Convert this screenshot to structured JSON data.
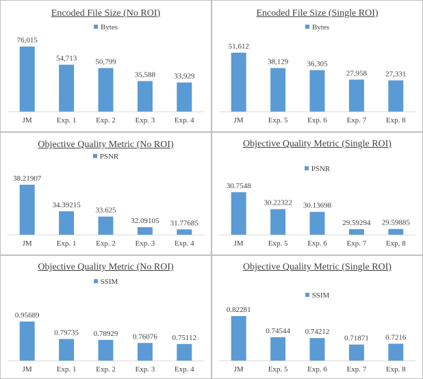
{
  "page": {
    "bar_color": "#5b9bd5",
    "text_color": "#404040",
    "axis_color": "#d9d9d9"
  },
  "chart_data": [
    {
      "type": "bar",
      "title": "Encoded File Size (No ROI)",
      "series": [
        {
          "name": "Bytes",
          "values": [
            76015,
            54713,
            50799,
            35588,
            33929
          ]
        }
      ],
      "categories": [
        "JM",
        "Exp. 1",
        "Exp. 2",
        "Exp. 3",
        "Exp. 4"
      ],
      "data_labels": [
        "76,015",
        "54,713",
        "50,799",
        "35,588",
        "33,929"
      ],
      "legend": "top",
      "grid": false
    },
    {
      "type": "bar",
      "title": "Encoded File Size (Single ROI)",
      "series": [
        {
          "name": "Bytes",
          "values": [
            51612,
            38129,
            36305,
            27958,
            27331
          ]
        }
      ],
      "categories": [
        "JM",
        "Exp. 5",
        "Exp. 6",
        "Exp. 7",
        "Exp. 8"
      ],
      "data_labels": [
        "51,612",
        "38,129",
        "36,305",
        "27,958",
        "27,331"
      ],
      "legend": "top",
      "grid": false
    },
    {
      "type": "bar",
      "title": "Objective Quality Metric (No ROI)",
      "series": [
        {
          "name": "PSNR",
          "values": [
            38.21907,
            34.39215,
            33.625,
            32.09105,
            31.77685
          ]
        }
      ],
      "categories": [
        "JM",
        "Exp. 1",
        "Exp. 2",
        "Exp. 3",
        "Exp. 4"
      ],
      "data_labels": [
        "38.21907",
        "34.39215",
        "33.625",
        "32.09105",
        "31.77685"
      ],
      "legend": "top",
      "grid": false
    },
    {
      "type": "bar",
      "title": "Objective Quality Metric (Single ROI)",
      "series": [
        {
          "name": "PSNR",
          "values": [
            30.7548,
            30.22322,
            30.13698,
            29.59294,
            29.59885
          ]
        }
      ],
      "categories": [
        "JM",
        "Exp. 5",
        "Exp. 6",
        "Exp. 7",
        "Exp. 8"
      ],
      "data_labels": [
        "30.7548",
        "30.22322",
        "30.13698",
        "29.59294",
        "29.59885"
      ],
      "legend": "top",
      "grid": false
    },
    {
      "type": "bar",
      "title": "Objective Quality Metric (No ROI)",
      "series": [
        {
          "name": "SSIM",
          "values": [
            0.95689,
            0.79735,
            0.78929,
            0.76076,
            0.75112
          ]
        }
      ],
      "categories": [
        "JM",
        "Exp. 1",
        "Exp. 2",
        "Exp. 3",
        "Exp. 4"
      ],
      "data_labels": [
        "0.95689",
        "0.79735",
        "0.78929",
        "0.76076",
        "0.75112"
      ],
      "legend": "top",
      "grid": false
    },
    {
      "type": "bar",
      "title": "Objective Quality Metric (Single ROI)",
      "series": [
        {
          "name": "SSIM",
          "values": [
            0.82281,
            0.74544,
            0.74212,
            0.71871,
            0.7216
          ]
        }
      ],
      "categories": [
        "JM",
        "Exp. 5",
        "Exp. 6",
        "Exp. 7",
        "Exp. 8"
      ],
      "data_labels": [
        "0.82281",
        "0.74544",
        "0.74212",
        "0.71871",
        "0.7216"
      ],
      "legend": "top",
      "grid": false
    }
  ]
}
